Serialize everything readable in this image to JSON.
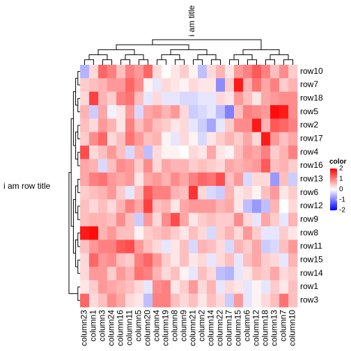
{
  "chart_data": {
    "type": "heatmap",
    "title": "i am title",
    "row_title": "i am row title",
    "legend_title": "color",
    "colors": {
      "low": "#0000FF",
      "mid": "#FFFFFF",
      "high": "#FF0000"
    },
    "zlim": [
      -2,
      2
    ],
    "zticks": [
      2,
      1,
      0,
      -1,
      -2
    ],
    "columns": [
      "column23",
      "column1",
      "column3",
      "column24",
      "column16",
      "column11",
      "column5",
      "column20",
      "column4",
      "column19",
      "column8",
      "column9",
      "column21",
      "column2",
      "column14",
      "column22",
      "column17",
      "column15",
      "column6",
      "column12",
      "column18",
      "column13",
      "column7",
      "column10"
    ],
    "rows": [
      "row10",
      "row7",
      "row18",
      "row5",
      "row2",
      "row17",
      "row4",
      "row16",
      "row13",
      "row6",
      "row12",
      "row9",
      "row8",
      "row11",
      "row15",
      "row14",
      "row1",
      "row3"
    ],
    "values": [
      [
        -0.6,
        0.3,
        1.2,
        1,
        0.5,
        1,
        0.8,
        1.2,
        0.3,
        0,
        0.2,
        0.4,
        0.1,
        -0.5,
        0.3,
        0.6,
        0.2,
        0.8,
        1,
        1.3,
        1,
        0.5,
        0.9,
        0.4
      ],
      [
        0.4,
        0.5,
        0.6,
        0.8,
        0.8,
        1.2,
        0.9,
        0.1,
        -0.2,
        0.3,
        0.2,
        0.1,
        0.3,
        0.2,
        0.2,
        -0.9,
        0.4,
        1.8,
        0.6,
        1.1,
        0.7,
        1,
        0.4,
        0.6
      ],
      [
        0.3,
        1.5,
        0.6,
        0.4,
        1,
        1.1,
        0.5,
        -0.2,
        0.3,
        -0.2,
        -0.2,
        -0.3,
        -0.3,
        -0.2,
        -0.2,
        0.3,
        0.2,
        0.8,
        0.5,
        0.2,
        0.7,
        0.8,
        0.9,
        0.9
      ],
      [
        0.6,
        -0.4,
        0.7,
        -0.1,
        0.2,
        0.8,
        -0.3,
        0.7,
        0.8,
        0.6,
        0.8,
        0.3,
        -0.4,
        -0.3,
        -0.2,
        -0.5,
        -1,
        0.5,
        1,
        0.9,
        0.8,
        1.9,
        1.8,
        0.9
      ],
      [
        0.5,
        0.3,
        0.8,
        0.6,
        0.2,
        1,
        0.5,
        0.8,
        0.5,
        0.4,
        0.2,
        0.3,
        -0.2,
        -0.4,
        -0.7,
        -0.2,
        0.4,
        0.9,
        0.9,
        1.8,
        0.6,
        1.3,
        1.2,
        1
      ],
      [
        0.4,
        0.9,
        1.2,
        0.3,
        0.5,
        1.1,
        0.8,
        0.5,
        0.6,
        0.1,
        -0.2,
        0.3,
        0.1,
        -0.3,
        0.2,
        0.4,
        0.6,
        0.4,
        0.7,
        0.3,
        1.8,
        0.8,
        0.5,
        0.7
      ],
      [
        1.4,
        0.3,
        0.5,
        0.8,
        0.5,
        -0.3,
        0.6,
        -0.5,
        0.3,
        0.1,
        0.1,
        0,
        0.3,
        0.2,
        0.7,
        0.2,
        0.1,
        0.5,
        0.8,
        0.7,
        1,
        0.4,
        0.6,
        1
      ],
      [
        0.7,
        0.6,
        -0.3,
        0.5,
        0.9,
        0.8,
        0.4,
        0.9,
        0.3,
        0.7,
        0.6,
        0.6,
        0.4,
        0.5,
        0.4,
        0.3,
        0.7,
        0.6,
        0.7,
        0.8,
        1.3,
        0.5,
        0.6,
        0.4
      ],
      [
        0.7,
        1,
        1.1,
        0.8,
        0.7,
        0.8,
        0.2,
        0.7,
        0.8,
        0.6,
        0.9,
        0.7,
        1,
        1.2,
        1.1,
        1.4,
        0.5,
        0.8,
        -0.3,
        0.3,
        0.3,
        -0.8,
        0.5,
        -0.4
      ],
      [
        0.4,
        0.5,
        0.6,
        0.8,
        0.4,
        -0.2,
        0.5,
        1.3,
        1,
        1,
        0.6,
        0.5,
        1.6,
        0.3,
        -0.3,
        -0.4,
        0.6,
        0.2,
        0.3,
        0.1,
        0.5,
        0.8,
        0.2,
        0.4
      ],
      [
        0.5,
        0.3,
        0.5,
        0.3,
        0.6,
        1,
        0.7,
        1.5,
        0.5,
        0.6,
        0.2,
        0.7,
        0.8,
        0.8,
        0.8,
        0.6,
        0.7,
        0.2,
        -0.5,
        -0.8,
        -0.5,
        0.6,
        0,
        0.3
      ],
      [
        0.5,
        0.6,
        0.6,
        0.5,
        0.9,
        0.5,
        -0.4,
        0.8,
        0.3,
        0.9,
        1.4,
        0.7,
        0.2,
        0.4,
        0.5,
        0.4,
        0.4,
        0.9,
        0.3,
        -0.2,
        0.7,
        0.4,
        -0.2,
        0.6
      ],
      [
        1.8,
        1.9,
        0.6,
        0.8,
        0.5,
        0.5,
        0.1,
        0.4,
        0.5,
        0.6,
        0.4,
        0.2,
        0.5,
        0.3,
        -0.3,
        0.4,
        0.6,
        0.3,
        0.8,
        0.4,
        -0.2,
        -0.2,
        0.4,
        0.2
      ],
      [
        0.5,
        0.8,
        1,
        1,
        1.3,
        1.4,
        0.8,
        0.5,
        0.3,
        -0.2,
        0.2,
        0.5,
        -0.3,
        0.6,
        0.5,
        0.3,
        -0.3,
        0.6,
        0.4,
        0.7,
        -0.4,
        -0.3,
        0.5,
        0.8
      ],
      [
        0.3,
        1.2,
        0.8,
        0.9,
        0.5,
        0.4,
        1,
        1.2,
        0.8,
        0.4,
        0.2,
        0.5,
        0.2,
        0.3,
        -0.2,
        0.3,
        0.5,
        -0.2,
        0.5,
        0.7,
        0.4,
        0.3,
        -0.2,
        0.6
      ],
      [
        0.3,
        0.8,
        0.8,
        0.4,
        0.8,
        0.6,
        1.1,
        1,
        0.6,
        0.3,
        0.5,
        0.1,
        -0.2,
        0.5,
        0.3,
        -0.5,
        -0.6,
        -0.2,
        0.2,
        0.5,
        0.4,
        0.7,
        0.3,
        0.4
      ],
      [
        0.2,
        0.4,
        0.8,
        0.7,
        0.6,
        0.5,
        0.3,
        -0.2,
        0.9,
        1,
        0.2,
        0.4,
        0.8,
        0.3,
        0.6,
        -0.2,
        0.3,
        0.2,
        -0.2,
        0.1,
        -0.2,
        0.4,
        0.2,
        0.5
      ],
      [
        1.2,
        0.3,
        0.5,
        0.9,
        0.7,
        0.3,
        0.2,
        -0.5,
        1,
        1,
        0.5,
        0.3,
        0.5,
        0.2,
        0.5,
        0.3,
        -0.4,
        0.8,
        -0.2,
        0.1,
        0.3,
        0.5,
        1.1,
        0.5
      ]
    ]
  }
}
